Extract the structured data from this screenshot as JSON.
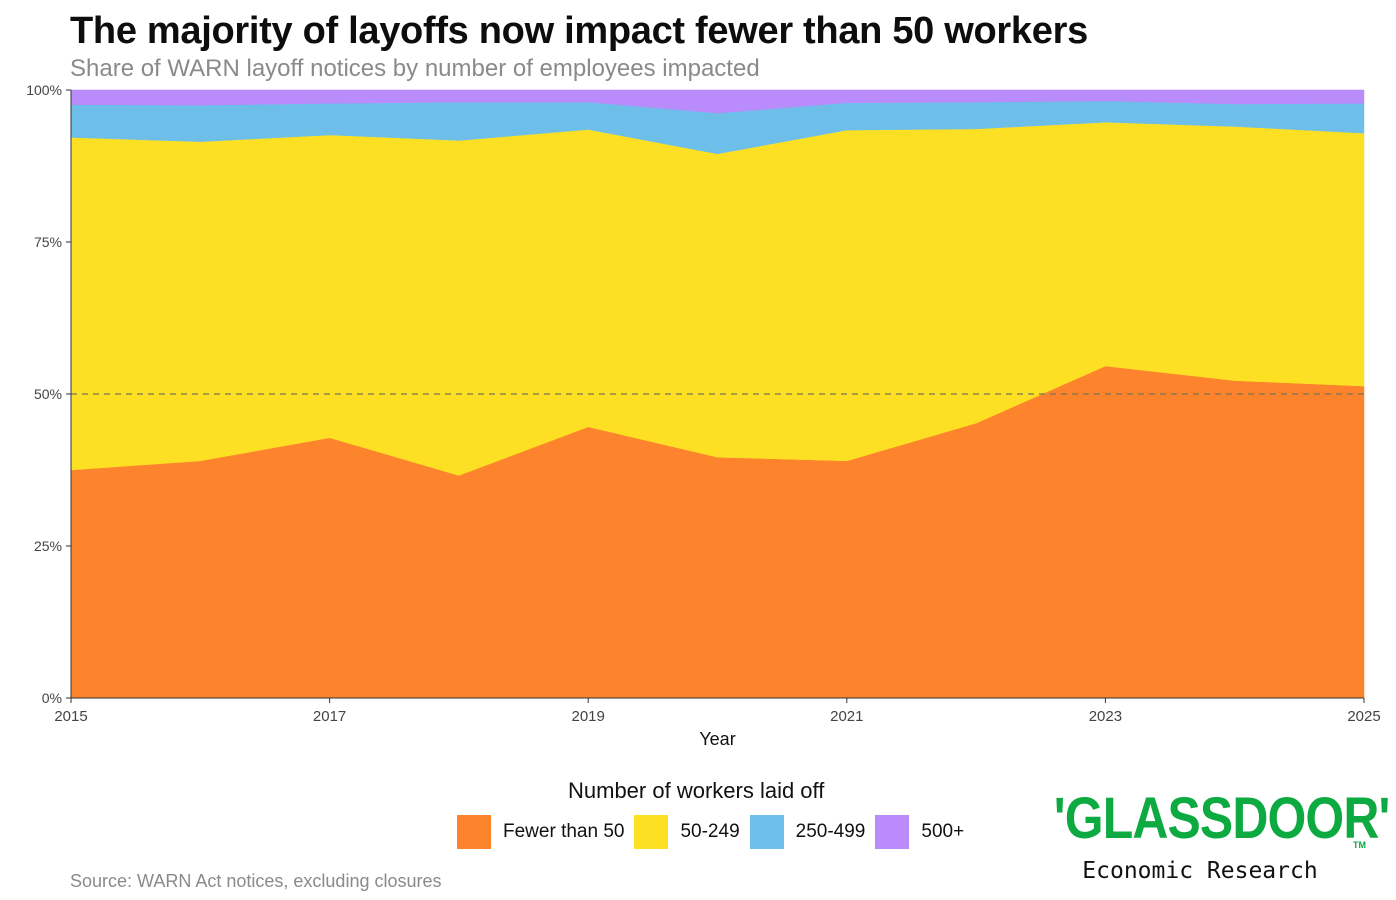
{
  "header": {
    "title": "The majority of layoffs now impact fewer than 50 workers",
    "subtitle": "Share of WARN layoff notices by number of employees impacted"
  },
  "chart_data": {
    "type": "area",
    "stacked": true,
    "x": [
      2015,
      2016,
      2017,
      2018,
      2019,
      2020,
      2021,
      2022,
      2023,
      2024,
      2025
    ],
    "xticks": [
      "2015",
      "2017",
      "2019",
      "2021",
      "2023",
      "2025"
    ],
    "yticks": [
      "0%",
      "25%",
      "50%",
      "75%",
      "100%"
    ],
    "ylim": [
      0,
      100
    ],
    "xlabel": "Year",
    "ylabel": "",
    "reference_line": {
      "y": 50,
      "style": "dashed"
    },
    "series": [
      {
        "name": "Fewer than 50",
        "color": "#fd832d",
        "values": [
          37.5,
          39,
          42.8,
          36.6,
          44.6,
          39.6,
          39,
          45.2,
          54.6,
          52.2,
          51.3
        ]
      },
      {
        "name": "50-249",
        "color": "#fde023",
        "values": [
          54.7,
          52.5,
          49.8,
          55.1,
          48.9,
          49.9,
          54.4,
          48.4,
          40.1,
          41.8,
          41.6
        ]
      },
      {
        "name": "250-499",
        "color": "#6dbfe9",
        "values": [
          5.4,
          6,
          5.2,
          6.3,
          4.5,
          6.7,
          4.5,
          4.4,
          3.5,
          3.7,
          4.9
        ]
      },
      {
        "name": "500+",
        "color": "#b98bfb",
        "values": [
          2.4,
          2.5,
          2.2,
          2.0,
          2.0,
          3.8,
          2.1,
          2.0,
          1.8,
          2.3,
          2.2
        ]
      }
    ],
    "legend_title": "Number of workers laid off",
    "legend_position": "bottom"
  },
  "footer": {
    "source": "Source: WARN Act notices, excluding closures",
    "brand_name": "'GLASSDOOR'",
    "brand_sub": "Economic Research",
    "brand_tm": "TM"
  }
}
